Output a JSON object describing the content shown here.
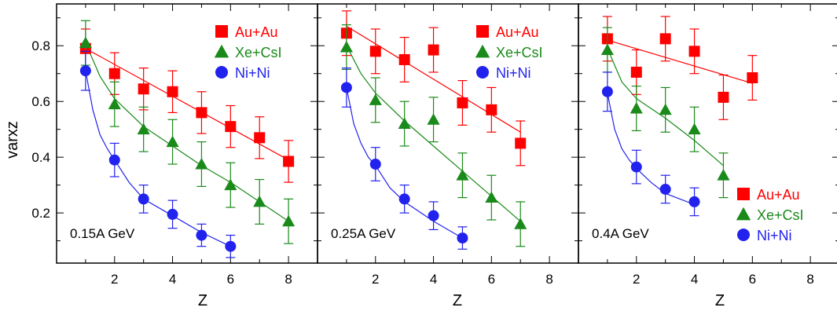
{
  "chart_data": {
    "type": "scatter",
    "ylabel": "varxz",
    "xlabel": "Z",
    "xlim": [
      0,
      9
    ],
    "ylim": [
      0.02,
      0.95
    ],
    "xticks": [
      "2",
      "4",
      "6",
      "8"
    ],
    "yticks": [
      "0.2",
      "0.4",
      "0.6",
      "0.8"
    ],
    "colors": {
      "Au+Au": "#ff0000",
      "Xe+CsI": "#1a8a1a",
      "Ni+Ni": "#2222ee"
    },
    "panels": [
      {
        "label": "0.15A GeV",
        "legend_position": "top-right",
        "series": [
          {
            "name": "Au+Au",
            "marker": "square",
            "color": "#ff0000",
            "x": [
              1,
              2,
              3,
              4,
              5,
              6,
              7,
              8
            ],
            "y": [
              0.79,
              0.7,
              0.645,
              0.635,
              0.56,
              0.51,
              0.47,
              0.385
            ],
            "err": [
              0.07,
              0.075,
              0.075,
              0.075,
              0.075,
              0.075,
              0.075,
              0.075
            ],
            "fit": [
              [
                1,
                0.79
              ],
              [
                8,
                0.39
              ]
            ]
          },
          {
            "name": "Xe+CsI",
            "marker": "triangle",
            "color": "#1a8a1a",
            "x": [
              1,
              2,
              3,
              4,
              5,
              6,
              7,
              8
            ],
            "y": [
              0.81,
              0.59,
              0.5,
              0.455,
              0.375,
              0.3,
              0.24,
              0.17
            ],
            "err": [
              0.08,
              0.08,
              0.08,
              0.08,
              0.08,
              0.08,
              0.08,
              0.08
            ],
            "fit": [
              [
                1,
                0.81
              ],
              [
                1.5,
                0.69
              ],
              [
                2,
                0.61
              ],
              [
                3,
                0.51
              ],
              [
                4,
                0.44
              ],
              [
                5,
                0.37
              ],
              [
                6,
                0.31
              ],
              [
                7,
                0.24
              ],
              [
                8,
                0.17
              ]
            ]
          },
          {
            "name": "Ni+Ni",
            "marker": "circle",
            "color": "#2222ee",
            "x": [
              1,
              2,
              3,
              4,
              5,
              6
            ],
            "y": [
              0.71,
              0.39,
              0.25,
              0.195,
              0.12,
              0.08
            ],
            "err": [
              0.07,
              0.06,
              0.05,
              0.05,
              0.04,
              0.04
            ],
            "fit": [
              [
                1,
                0.71
              ],
              [
                1.25,
                0.57
              ],
              [
                1.5,
                0.48
              ],
              [
                1.75,
                0.43
              ],
              [
                2,
                0.39
              ],
              [
                2.5,
                0.31
              ],
              [
                3,
                0.25
              ],
              [
                4,
                0.19
              ],
              [
                5,
                0.13
              ],
              [
                6,
                0.08
              ]
            ]
          }
        ]
      },
      {
        "label": "0.25A GeV",
        "legend_position": "top-right",
        "series": [
          {
            "name": "Au+Au",
            "marker": "square",
            "color": "#ff0000",
            "x": [
              1,
              2,
              3,
              4,
              5,
              6,
              7
            ],
            "y": [
              0.845,
              0.78,
              0.75,
              0.785,
              0.595,
              0.57,
              0.45
            ],
            "err": [
              0.08,
              0.08,
              0.08,
              0.08,
              0.08,
              0.08,
              0.08
            ],
            "fit": [
              [
                1,
                0.87
              ],
              [
                7,
                0.49
              ]
            ]
          },
          {
            "name": "Xe+CsI",
            "marker": "triangle",
            "color": "#1a8a1a",
            "x": [
              1,
              2,
              3,
              4,
              5,
              6,
              7
            ],
            "y": [
              0.795,
              0.605,
              0.52,
              0.535,
              0.335,
              0.255,
              0.16
            ],
            "err": [
              0.08,
              0.08,
              0.08,
              0.08,
              0.08,
              0.08,
              0.08
            ],
            "fit": [
              [
                1,
                0.8
              ],
              [
                1.5,
                0.7
              ],
              [
                2,
                0.63
              ],
              [
                3,
                0.53
              ],
              [
                4,
                0.44
              ],
              [
                5,
                0.35
              ],
              [
                6,
                0.26
              ],
              [
                7,
                0.17
              ]
            ]
          },
          {
            "name": "Ni+Ni",
            "marker": "circle",
            "color": "#2222ee",
            "x": [
              1,
              2,
              3,
              4,
              5
            ],
            "y": [
              0.65,
              0.375,
              0.25,
              0.19,
              0.11
            ],
            "err": [
              0.07,
              0.06,
              0.05,
              0.05,
              0.04
            ],
            "fit": [
              [
                1,
                0.65
              ],
              [
                1.25,
                0.52
              ],
              [
                1.5,
                0.45
              ],
              [
                1.75,
                0.4
              ],
              [
                2,
                0.37
              ],
              [
                2.5,
                0.29
              ],
              [
                3,
                0.24
              ],
              [
                4,
                0.17
              ],
              [
                5,
                0.11
              ]
            ]
          }
        ]
      },
      {
        "label": "0.4A GeV",
        "legend_position": "bottom-right",
        "series": [
          {
            "name": "Au+Au",
            "marker": "square",
            "color": "#ff0000",
            "x": [
              1,
              2,
              3,
              4,
              5,
              6
            ],
            "y": [
              0.825,
              0.705,
              0.825,
              0.78,
              0.615,
              0.685
            ],
            "err": [
              0.08,
              0.08,
              0.08,
              0.08,
              0.08,
              0.08
            ],
            "fit": [
              [
                1,
                0.82
              ],
              [
                6,
                0.665
              ]
            ]
          },
          {
            "name": "Xe+CsI",
            "marker": "triangle",
            "color": "#1a8a1a",
            "x": [
              1,
              2,
              3,
              4,
              5
            ],
            "y": [
              0.785,
              0.575,
              0.57,
              0.5,
              0.335
            ],
            "err": [
              0.08,
              0.08,
              0.08,
              0.08,
              0.08
            ],
            "fit": [
              [
                1,
                0.79
              ],
              [
                1.5,
                0.67
              ],
              [
                2,
                0.61
              ],
              [
                3,
                0.54
              ],
              [
                4,
                0.46
              ],
              [
                5,
                0.37
              ]
            ]
          },
          {
            "name": "Ni+Ni",
            "marker": "circle",
            "color": "#2222ee",
            "x": [
              1,
              2,
              3,
              4
            ],
            "y": [
              0.635,
              0.365,
              0.285,
              0.24
            ],
            "err": [
              0.07,
              0.06,
              0.05,
              0.05
            ],
            "fit": [
              [
                1,
                0.63
              ],
              [
                1.25,
                0.5
              ],
              [
                1.5,
                0.43
              ],
              [
                1.75,
                0.39
              ],
              [
                2,
                0.36
              ],
              [
                2.5,
                0.31
              ],
              [
                3,
                0.27
              ],
              [
                4,
                0.23
              ]
            ]
          }
        ]
      }
    ]
  }
}
